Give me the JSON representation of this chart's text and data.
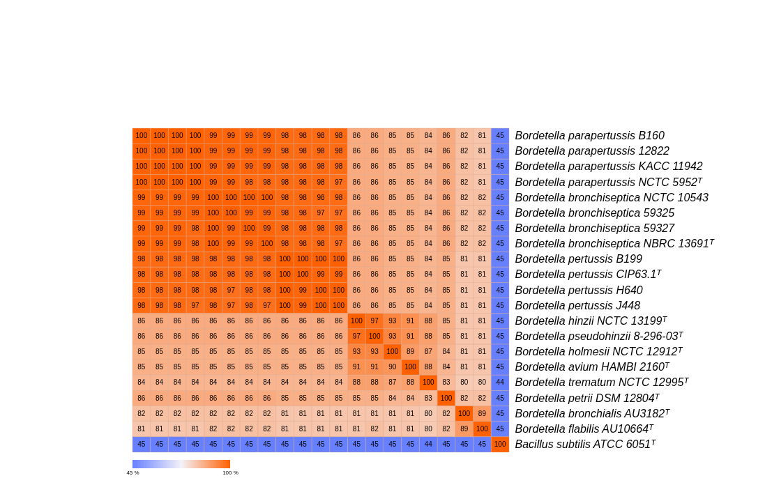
{
  "chart_data": {
    "type": "heatmap",
    "categories": [
      null,
      null,
      null,
      null,
      null,
      null,
      null,
      null,
      null,
      null,
      null,
      null,
      null,
      null,
      null,
      null,
      null,
      null,
      null,
      null,
      null
    ],
    "y_categories": [
      "Bordetella parapertussis B160",
      "Bordetella parapertussis 12822",
      "Bordetella parapertussis KACC 11942",
      "Bordetella parapertussis NCTC 5952ᵀ",
      "Bordetella bronchiseptica NCTC 10543",
      "Bordetella bronchiseptica 59325",
      "Bordetella bronchiseptica 59327",
      "Bordetella bronchiseptica NBRC 13691ᵀ",
      "Bordetella pertussis B199",
      "Bordetella pertussis CIP63.1ᵀ",
      "Bordetella pertussis H640",
      "Bordetella pertussis J448",
      "Bordetella hinzii NCTC 13199ᵀ",
      "Bordetella pseudohinzii 8-296-03ᵀ",
      "Bordetella holmesii NCTC 12912ᵀ",
      "Bordetella avium HAMBI 2160ᵀ",
      "Bordetella trematum NCTC 12995ᵀ",
      "Bordetella petrii DSM 12804ᵀ",
      "Bordetella bronchialis AU3182ᵀ",
      "Bordetella flabilis AU10664ᵀ",
      "Bacillus subtilis ATCC 6051ᵀ"
    ],
    "cells": [
      [
        100,
        100,
        100,
        100,
        99,
        99,
        99,
        99,
        98,
        98,
        98,
        98,
        86,
        86,
        85,
        85,
        84,
        86,
        82,
        81,
        45
      ],
      [
        100,
        100,
        100,
        100,
        99,
        99,
        99,
        99,
        98,
        98,
        98,
        98,
        86,
        86,
        85,
        85,
        84,
        86,
        82,
        81,
        45
      ],
      [
        100,
        100,
        100,
        100,
        99,
        99,
        99,
        99,
        98,
        98,
        98,
        98,
        86,
        86,
        85,
        85,
        84,
        86,
        82,
        81,
        45
      ],
      [
        100,
        100,
        100,
        100,
        99,
        99,
        98,
        98,
        98,
        98,
        98,
        97,
        86,
        86,
        85,
        85,
        84,
        86,
        82,
        81,
        45
      ],
      [
        99,
        99,
        99,
        99,
        100,
        100,
        100,
        100,
        98,
        98,
        98,
        98,
        86,
        86,
        85,
        85,
        84,
        86,
        82,
        82,
        45
      ],
      [
        99,
        99,
        99,
        99,
        100,
        100,
        99,
        99,
        98,
        98,
        97,
        97,
        86,
        86,
        85,
        85,
        84,
        86,
        82,
        82,
        45
      ],
      [
        99,
        99,
        99,
        98,
        100,
        99,
        100,
        99,
        98,
        98,
        98,
        98,
        86,
        86,
        85,
        85,
        84,
        86,
        82,
        82,
        45
      ],
      [
        99,
        99,
        99,
        98,
        100,
        99,
        99,
        100,
        98,
        98,
        98,
        97,
        86,
        86,
        85,
        85,
        84,
        86,
        82,
        82,
        45
      ],
      [
        98,
        98,
        98,
        98,
        98,
        98,
        98,
        98,
        100,
        100,
        100,
        100,
        86,
        86,
        85,
        85,
        84,
        85,
        81,
        81,
        45
      ],
      [
        98,
        98,
        98,
        98,
        98,
        98,
        98,
        98,
        100,
        100,
        99,
        99,
        86,
        86,
        85,
        85,
        84,
        85,
        81,
        81,
        45
      ],
      [
        98,
        98,
        98,
        98,
        98,
        97,
        98,
        98,
        100,
        99,
        100,
        100,
        86,
        86,
        85,
        85,
        84,
        85,
        81,
        81,
        45
      ],
      [
        98,
        98,
        98,
        97,
        98,
        97,
        98,
        97,
        100,
        99,
        100,
        100,
        86,
        86,
        85,
        85,
        84,
        85,
        81,
        81,
        45
      ],
      [
        86,
        86,
        86,
        86,
        86,
        86,
        86,
        86,
        86,
        86,
        86,
        86,
        100,
        97,
        93,
        91,
        88,
        85,
        81,
        81,
        45
      ],
      [
        86,
        86,
        86,
        86,
        86,
        86,
        86,
        86,
        86,
        86,
        86,
        86,
        97,
        100,
        93,
        91,
        88,
        85,
        81,
        81,
        45
      ],
      [
        85,
        85,
        85,
        85,
        85,
        85,
        85,
        85,
        85,
        85,
        85,
        85,
        93,
        93,
        100,
        89,
        87,
        84,
        81,
        81,
        45
      ],
      [
        85,
        85,
        85,
        85,
        85,
        85,
        85,
        85,
        85,
        85,
        85,
        85,
        91,
        91,
        90,
        100,
        88,
        84,
        81,
        81,
        45
      ],
      [
        84,
        84,
        84,
        84,
        84,
        84,
        84,
        84,
        84,
        84,
        84,
        84,
        88,
        88,
        87,
        88,
        100,
        83,
        80,
        80,
        44
      ],
      [
        86,
        86,
        86,
        86,
        86,
        86,
        86,
        86,
        85,
        85,
        85,
        85,
        85,
        85,
        84,
        84,
        83,
        100,
        82,
        82,
        45
      ],
      [
        82,
        82,
        82,
        82,
        82,
        82,
        82,
        82,
        81,
        81,
        81,
        81,
        81,
        81,
        81,
        81,
        80,
        82,
        100,
        89,
        45
      ],
      [
        81,
        81,
        81,
        81,
        82,
        82,
        82,
        82,
        81,
        81,
        81,
        81,
        81,
        82,
        81,
        81,
        80,
        82,
        89,
        100,
        45
      ],
      [
        45,
        45,
        45,
        45,
        45,
        45,
        45,
        45,
        45,
        45,
        45,
        45,
        45,
        45,
        45,
        45,
        44,
        45,
        45,
        45,
        100
      ]
    ],
    "clim": [
      45,
      100
    ],
    "cticks": [
      {
        "value": 45,
        "label": "45 %"
      },
      {
        "value": 100,
        "label": "100 %"
      }
    ],
    "data_labels": true,
    "tick_labels": "y"
  }
}
